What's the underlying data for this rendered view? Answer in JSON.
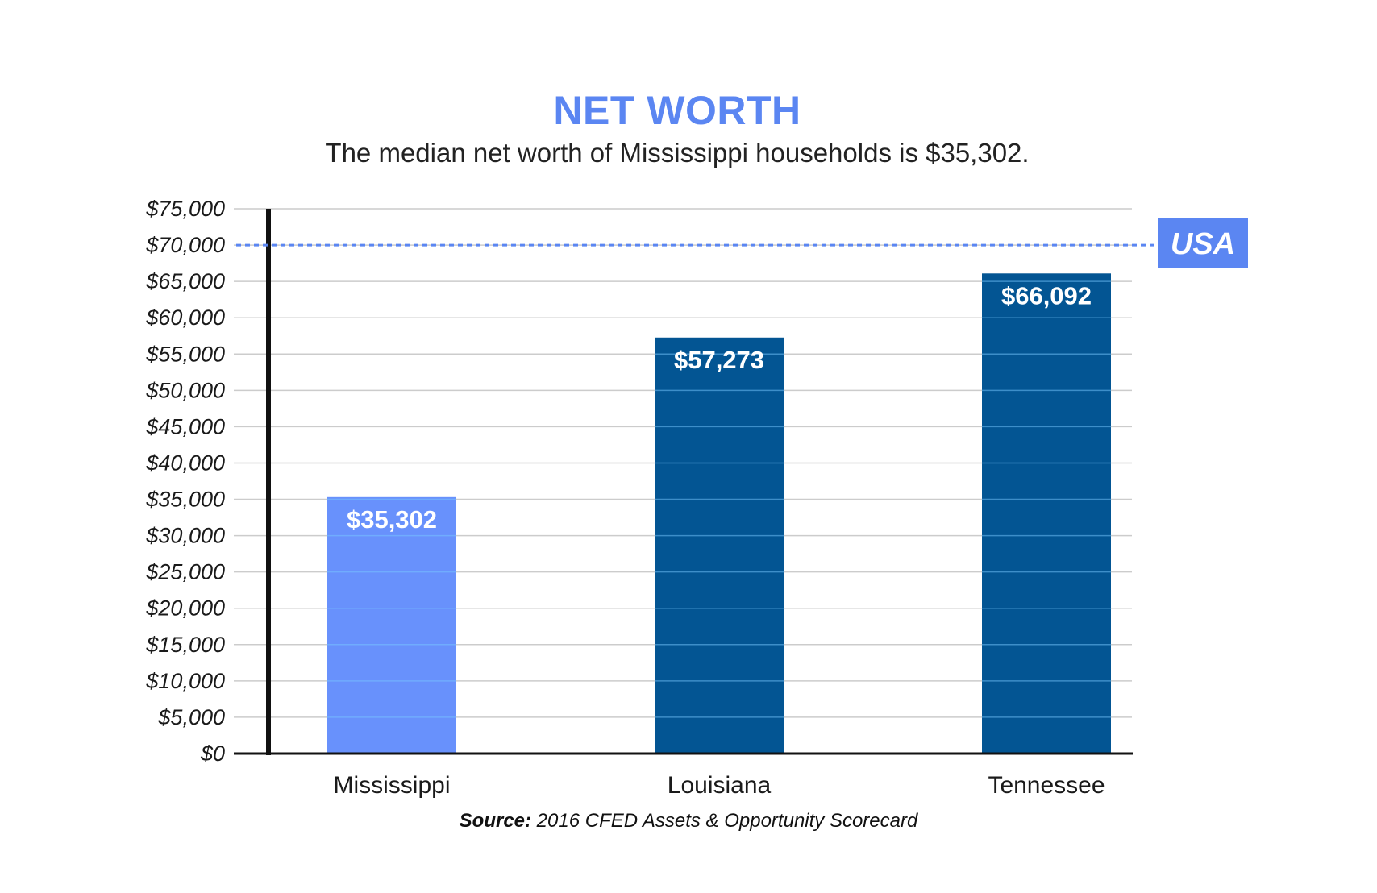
{
  "chart_data": {
    "type": "bar",
    "title": "NET WORTH",
    "subtitle": "The median net worth of Mississippi households is $35,302.",
    "categories": [
      "Mississippi",
      "Louisiana",
      "Tennessee"
    ],
    "values": [
      35302,
      57273,
      66092
    ],
    "value_labels": [
      "$35,302",
      "$57,273",
      "$66,092"
    ],
    "bar_colors": [
      "#6891fc",
      "#035593",
      "#035593"
    ],
    "ylim": [
      0,
      75000
    ],
    "y_ticks": [
      0,
      5000,
      10000,
      15000,
      20000,
      25000,
      30000,
      35000,
      40000,
      45000,
      50000,
      55000,
      60000,
      65000,
      70000,
      75000
    ],
    "y_tick_labels": [
      "$0",
      "$5,000",
      "$10,000",
      "$15,000",
      "$20,000",
      "$25,000",
      "$30,000",
      "$35,000",
      "$40,000",
      "$45,000",
      "$50,000",
      "$55,000",
      "$60,000",
      "$65,000",
      "$70,000",
      "$75,000"
    ],
    "grid": true,
    "reference_line": {
      "label": "USA",
      "value": 70000,
      "color": "#5b86f2",
      "style": "dashed"
    }
  },
  "source": {
    "label": "Source:",
    "text": " 2016 CFED Assets & Opportunity Scorecard"
  }
}
